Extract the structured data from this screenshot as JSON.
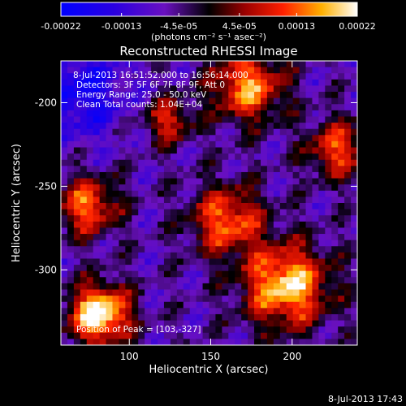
{
  "chart_data": {
    "type": "heatmap",
    "title": "Reconstructed RHESSI Image",
    "xlabel": "Heliocentric X (arcsec)",
    "ylabel": "Heliocentric Y (arcsec)",
    "x_ticks": [
      "100",
      "150",
      "200"
    ],
    "x_tick_values": [
      100,
      150,
      200
    ],
    "y_ticks": [
      "-200",
      "-250",
      "-300"
    ],
    "y_tick_values": [
      -200,
      -250,
      -300
    ],
    "xlim": [
      58,
      240
    ],
    "ylim": [
      -345,
      -175
    ],
    "colorbar": {
      "tick_labels": [
        "-0.00022",
        "-0.00013",
        "-4.5e-05",
        "4.5e-05",
        "0.00013",
        "0.00022"
      ],
      "tick_values": [
        -0.00022,
        -0.00013,
        -4.5e-05,
        4.5e-05,
        0.00013,
        0.00022
      ],
      "range": [
        -0.00022,
        0.00022
      ],
      "unit_label": "(photons cm⁻² s⁻¹ asec⁻²)",
      "colors": [
        "#0000ff",
        "#4a00c8",
        "#7a1fb0",
        "#000000",
        "#8b0000",
        "#e00000",
        "#ff7a00",
        "#ffff80",
        "#ffffff"
      ]
    },
    "info": [
      " 8-Jul-2013 16:51:52.000 to 16:56:14.000",
      "Detectors: 3F 5F 6F 7F 8F 9F, Att 0",
      "Energy Range: 25.0 - 50.0 keV",
      "Clean     Total counts: 1.04E+04"
    ],
    "peak_label": "Position of Peak = [103,-327]",
    "peak": [
      103,
      -327
    ]
  },
  "footer_date": "8-Jul-2013 17:43"
}
